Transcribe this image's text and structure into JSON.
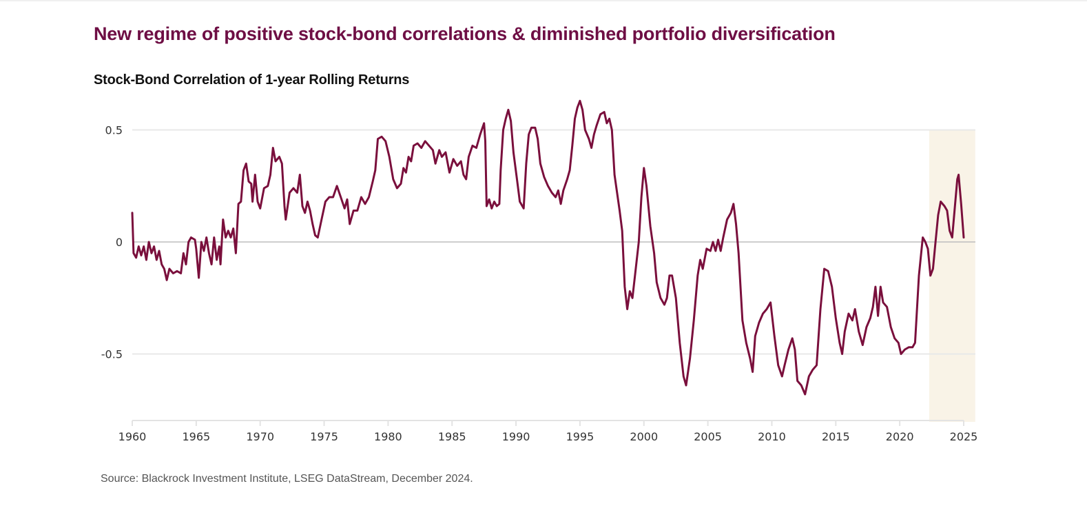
{
  "header": {
    "title": "New regime of positive stock-bond correlations & diminished portfolio diversification",
    "subtitle": "Stock-Bond Correlation of 1-year Rolling Returns"
  },
  "footer": {
    "source": "Source: Blackrock Investment Institute, LSEG DataStream, December 2024."
  },
  "colors": {
    "title": "#6e0e44",
    "line": "#7a0f3c",
    "highlight_band": "#f9f3e7",
    "gridline": "#e8e8e8",
    "zero_line": "#bdbdbd"
  },
  "chart_data": {
    "type": "line",
    "title": "Stock-Bond Correlation of 1-year Rolling Returns",
    "xlabel": "",
    "ylabel": "",
    "xlim": [
      1960,
      2025
    ],
    "ylim": [
      -0.8,
      0.66
    ],
    "x_ticks": [
      1960,
      1965,
      1970,
      1975,
      1980,
      1985,
      1990,
      1995,
      2000,
      2005,
      2010,
      2015,
      2020,
      2025
    ],
    "x_tick_labels": [
      "1960",
      "1965",
      "1970",
      "1975",
      "1980",
      "1985",
      "1990",
      "1995",
      "2000",
      "2005",
      "2010",
      "2015",
      "2020",
      "2025"
    ],
    "y_ticks": [
      0.5,
      0,
      -0.5
    ],
    "y_tick_labels": [
      "0.5",
      "0",
      "-0.5"
    ],
    "grid": "horizontal",
    "legend": "none",
    "highlight_region": {
      "x_start": 2022.3,
      "x_end": 2025.9,
      "y_top": 0.5
    },
    "series": [
      {
        "name": "Stock-Bond Correlation",
        "points": [
          [
            1960.0,
            0.13
          ],
          [
            1960.1,
            -0.05
          ],
          [
            1960.3,
            -0.07
          ],
          [
            1960.5,
            -0.02
          ],
          [
            1960.7,
            -0.06
          ],
          [
            1960.9,
            -0.02
          ],
          [
            1961.1,
            -0.08
          ],
          [
            1961.3,
            0.0
          ],
          [
            1961.5,
            -0.05
          ],
          [
            1961.7,
            -0.02
          ],
          [
            1961.9,
            -0.08
          ],
          [
            1962.1,
            -0.04
          ],
          [
            1962.3,
            -0.1
          ],
          [
            1962.5,
            -0.12
          ],
          [
            1962.7,
            -0.17
          ],
          [
            1962.9,
            -0.12
          ],
          [
            1963.2,
            -0.14
          ],
          [
            1963.5,
            -0.13
          ],
          [
            1963.8,
            -0.14
          ],
          [
            1964.0,
            -0.05
          ],
          [
            1964.2,
            -0.1
          ],
          [
            1964.4,
            0.0
          ],
          [
            1964.6,
            0.02
          ],
          [
            1964.9,
            0.01
          ],
          [
            1965.0,
            -0.03
          ],
          [
            1965.2,
            -0.16
          ],
          [
            1965.4,
            0.0
          ],
          [
            1965.6,
            -0.04
          ],
          [
            1965.8,
            0.02
          ],
          [
            1966.0,
            -0.05
          ],
          [
            1966.2,
            -0.1
          ],
          [
            1966.4,
            0.02
          ],
          [
            1966.6,
            -0.08
          ],
          [
            1966.8,
            -0.02
          ],
          [
            1966.9,
            -0.1
          ],
          [
            1967.1,
            0.1
          ],
          [
            1967.3,
            0.02
          ],
          [
            1967.5,
            0.05
          ],
          [
            1967.7,
            0.02
          ],
          [
            1967.9,
            0.06
          ],
          [
            1968.1,
            -0.05
          ],
          [
            1968.3,
            0.17
          ],
          [
            1968.5,
            0.18
          ],
          [
            1968.7,
            0.32
          ],
          [
            1968.9,
            0.35
          ],
          [
            1969.1,
            0.27
          ],
          [
            1969.3,
            0.26
          ],
          [
            1969.4,
            0.18
          ],
          [
            1969.6,
            0.3
          ],
          [
            1969.8,
            0.18
          ],
          [
            1970.0,
            0.15
          ],
          [
            1970.3,
            0.24
          ],
          [
            1970.6,
            0.25
          ],
          [
            1970.8,
            0.3
          ],
          [
            1971.0,
            0.42
          ],
          [
            1971.2,
            0.36
          ],
          [
            1971.5,
            0.38
          ],
          [
            1971.7,
            0.35
          ],
          [
            1971.9,
            0.16
          ],
          [
            1972.0,
            0.1
          ],
          [
            1972.3,
            0.22
          ],
          [
            1972.6,
            0.24
          ],
          [
            1972.9,
            0.22
          ],
          [
            1973.1,
            0.3
          ],
          [
            1973.3,
            0.16
          ],
          [
            1973.5,
            0.13
          ],
          [
            1973.7,
            0.18
          ],
          [
            1973.9,
            0.14
          ],
          [
            1974.1,
            0.08
          ],
          [
            1974.3,
            0.03
          ],
          [
            1974.5,
            0.02
          ],
          [
            1974.8,
            0.1
          ],
          [
            1975.1,
            0.18
          ],
          [
            1975.4,
            0.2
          ],
          [
            1975.7,
            0.2
          ],
          [
            1976.0,
            0.25
          ],
          [
            1976.3,
            0.2
          ],
          [
            1976.6,
            0.15
          ],
          [
            1976.8,
            0.19
          ],
          [
            1977.0,
            0.08
          ],
          [
            1977.3,
            0.14
          ],
          [
            1977.6,
            0.14
          ],
          [
            1977.9,
            0.2
          ],
          [
            1978.2,
            0.17
          ],
          [
            1978.5,
            0.2
          ],
          [
            1978.8,
            0.27
          ],
          [
            1979.0,
            0.32
          ],
          [
            1979.2,
            0.46
          ],
          [
            1979.5,
            0.47
          ],
          [
            1979.8,
            0.45
          ],
          [
            1980.1,
            0.38
          ],
          [
            1980.4,
            0.28
          ],
          [
            1980.7,
            0.24
          ],
          [
            1981.0,
            0.26
          ],
          [
            1981.2,
            0.33
          ],
          [
            1981.4,
            0.31
          ],
          [
            1981.6,
            0.38
          ],
          [
            1981.8,
            0.36
          ],
          [
            1982.0,
            0.43
          ],
          [
            1982.3,
            0.44
          ],
          [
            1982.6,
            0.42
          ],
          [
            1982.9,
            0.45
          ],
          [
            1983.2,
            0.43
          ],
          [
            1983.5,
            0.41
          ],
          [
            1983.7,
            0.35
          ],
          [
            1984.0,
            0.41
          ],
          [
            1984.2,
            0.38
          ],
          [
            1984.5,
            0.4
          ],
          [
            1984.8,
            0.31
          ],
          [
            1985.1,
            0.37
          ],
          [
            1985.4,
            0.34
          ],
          [
            1985.7,
            0.36
          ],
          [
            1985.9,
            0.3
          ],
          [
            1986.1,
            0.28
          ],
          [
            1986.3,
            0.38
          ],
          [
            1986.6,
            0.43
          ],
          [
            1986.9,
            0.42
          ],
          [
            1987.2,
            0.48
          ],
          [
            1987.5,
            0.53
          ],
          [
            1987.6,
            0.45
          ],
          [
            1987.7,
            0.16
          ],
          [
            1987.9,
            0.19
          ],
          [
            1988.1,
            0.15
          ],
          [
            1988.3,
            0.18
          ],
          [
            1988.5,
            0.16
          ],
          [
            1988.7,
            0.17
          ],
          [
            1988.8,
            0.32
          ],
          [
            1989.0,
            0.5
          ],
          [
            1989.2,
            0.55
          ],
          [
            1989.4,
            0.59
          ],
          [
            1989.6,
            0.54
          ],
          [
            1989.8,
            0.4
          ],
          [
            1990.1,
            0.27
          ],
          [
            1990.3,
            0.18
          ],
          [
            1990.6,
            0.15
          ],
          [
            1990.8,
            0.35
          ],
          [
            1991.0,
            0.48
          ],
          [
            1991.2,
            0.51
          ],
          [
            1991.5,
            0.51
          ],
          [
            1991.7,
            0.46
          ],
          [
            1991.9,
            0.35
          ],
          [
            1992.2,
            0.29
          ],
          [
            1992.5,
            0.25
          ],
          [
            1992.8,
            0.22
          ],
          [
            1993.1,
            0.2
          ],
          [
            1993.3,
            0.23
          ],
          [
            1993.5,
            0.17
          ],
          [
            1993.7,
            0.23
          ],
          [
            1994.0,
            0.28
          ],
          [
            1994.2,
            0.32
          ],
          [
            1994.4,
            0.43
          ],
          [
            1994.6,
            0.55
          ],
          [
            1994.8,
            0.6
          ],
          [
            1995.0,
            0.63
          ],
          [
            1995.2,
            0.59
          ],
          [
            1995.4,
            0.5
          ],
          [
            1995.7,
            0.46
          ],
          [
            1995.9,
            0.42
          ],
          [
            1996.1,
            0.48
          ],
          [
            1996.3,
            0.52
          ],
          [
            1996.6,
            0.57
          ],
          [
            1996.9,
            0.58
          ],
          [
            1997.1,
            0.53
          ],
          [
            1997.3,
            0.55
          ],
          [
            1997.5,
            0.5
          ],
          [
            1997.7,
            0.3
          ],
          [
            1997.9,
            0.22
          ],
          [
            1998.1,
            0.14
          ],
          [
            1998.3,
            0.05
          ],
          [
            1998.5,
            -0.2
          ],
          [
            1998.7,
            -0.3
          ],
          [
            1998.9,
            -0.22
          ],
          [
            1999.1,
            -0.25
          ],
          [
            1999.3,
            -0.15
          ],
          [
            1999.6,
            0.0
          ],
          [
            1999.8,
            0.2
          ],
          [
            2000.0,
            0.33
          ],
          [
            2000.2,
            0.25
          ],
          [
            2000.5,
            0.07
          ],
          [
            2000.8,
            -0.05
          ],
          [
            2001.0,
            -0.18
          ],
          [
            2001.3,
            -0.25
          ],
          [
            2001.6,
            -0.28
          ],
          [
            2001.8,
            -0.25
          ],
          [
            2002.0,
            -0.15
          ],
          [
            2002.2,
            -0.15
          ],
          [
            2002.5,
            -0.25
          ],
          [
            2002.8,
            -0.45
          ],
          [
            2003.1,
            -0.6
          ],
          [
            2003.3,
            -0.64
          ],
          [
            2003.6,
            -0.52
          ],
          [
            2003.9,
            -0.35
          ],
          [
            2004.2,
            -0.15
          ],
          [
            2004.4,
            -0.08
          ],
          [
            2004.6,
            -0.12
          ],
          [
            2004.9,
            -0.03
          ],
          [
            2005.2,
            -0.04
          ],
          [
            2005.4,
            0.0
          ],
          [
            2005.6,
            -0.04
          ],
          [
            2005.8,
            0.01
          ],
          [
            2006.0,
            -0.04
          ],
          [
            2006.2,
            0.02
          ],
          [
            2006.5,
            0.1
          ],
          [
            2006.8,
            0.13
          ],
          [
            2007.0,
            0.17
          ],
          [
            2007.2,
            0.08
          ],
          [
            2007.4,
            -0.05
          ],
          [
            2007.7,
            -0.35
          ],
          [
            2008.0,
            -0.45
          ],
          [
            2008.3,
            -0.52
          ],
          [
            2008.5,
            -0.58
          ],
          [
            2008.7,
            -0.42
          ],
          [
            2009.0,
            -0.36
          ],
          [
            2009.3,
            -0.32
          ],
          [
            2009.6,
            -0.3
          ],
          [
            2009.9,
            -0.27
          ],
          [
            2010.2,
            -0.42
          ],
          [
            2010.5,
            -0.55
          ],
          [
            2010.8,
            -0.6
          ],
          [
            2011.0,
            -0.55
          ],
          [
            2011.3,
            -0.48
          ],
          [
            2011.6,
            -0.43
          ],
          [
            2011.8,
            -0.48
          ],
          [
            2012.0,
            -0.62
          ],
          [
            2012.3,
            -0.64
          ],
          [
            2012.6,
            -0.68
          ],
          [
            2012.9,
            -0.6
          ],
          [
            2013.2,
            -0.57
          ],
          [
            2013.5,
            -0.55
          ],
          [
            2013.8,
            -0.3
          ],
          [
            2014.1,
            -0.12
          ],
          [
            2014.4,
            -0.13
          ],
          [
            2014.7,
            -0.2
          ],
          [
            2015.0,
            -0.34
          ],
          [
            2015.3,
            -0.45
          ],
          [
            2015.5,
            -0.5
          ],
          [
            2015.7,
            -0.4
          ],
          [
            2016.0,
            -0.32
          ],
          [
            2016.3,
            -0.35
          ],
          [
            2016.5,
            -0.3
          ],
          [
            2016.8,
            -0.4
          ],
          [
            2017.1,
            -0.46
          ],
          [
            2017.4,
            -0.38
          ],
          [
            2017.7,
            -0.34
          ],
          [
            2017.9,
            -0.29
          ],
          [
            2018.1,
            -0.2
          ],
          [
            2018.3,
            -0.33
          ],
          [
            2018.5,
            -0.2
          ],
          [
            2018.7,
            -0.27
          ],
          [
            2019.0,
            -0.29
          ],
          [
            2019.3,
            -0.38
          ],
          [
            2019.6,
            -0.43
          ],
          [
            2019.9,
            -0.45
          ],
          [
            2020.1,
            -0.5
          ],
          [
            2020.4,
            -0.48
          ],
          [
            2020.7,
            -0.47
          ],
          [
            2021.0,
            -0.47
          ],
          [
            2021.2,
            -0.45
          ],
          [
            2021.5,
            -0.15
          ],
          [
            2021.8,
            0.02
          ],
          [
            2022.0,
            0.0
          ],
          [
            2022.2,
            -0.03
          ],
          [
            2022.4,
            -0.15
          ],
          [
            2022.6,
            -0.12
          ],
          [
            2022.8,
            0.0
          ],
          [
            2023.0,
            0.12
          ],
          [
            2023.2,
            0.18
          ],
          [
            2023.5,
            0.16
          ],
          [
            2023.7,
            0.14
          ],
          [
            2023.9,
            0.05
          ],
          [
            2024.1,
            0.02
          ],
          [
            2024.3,
            0.15
          ],
          [
            2024.5,
            0.28
          ],
          [
            2024.6,
            0.3
          ],
          [
            2024.8,
            0.17
          ],
          [
            2025.0,
            0.02
          ]
        ]
      }
    ]
  }
}
